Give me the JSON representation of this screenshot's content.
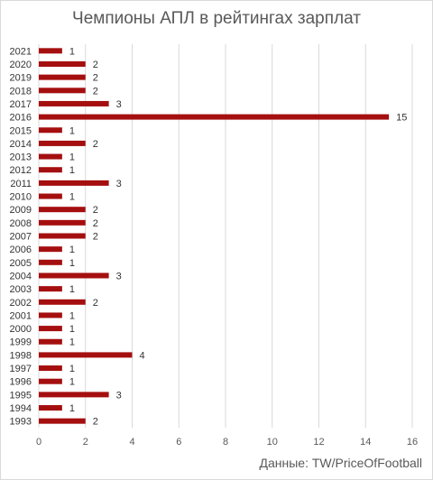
{
  "chart_data": {
    "type": "bar",
    "orientation": "horizontal",
    "title": "Чемпионы АПЛ в рейтингах зарплат",
    "source": "Данные: TW/PriceOfFootball",
    "categories": [
      "2021",
      "2020",
      "2019",
      "2018",
      "2017",
      "2016",
      "2015",
      "2014",
      "2013",
      "2012",
      "2011",
      "2010",
      "2009",
      "2008",
      "2007",
      "2006",
      "2005",
      "2004",
      "2003",
      "2002",
      "2001",
      "2000",
      "1999",
      "1998",
      "1997",
      "1996",
      "1995",
      "1994",
      "1993"
    ],
    "values": [
      1,
      2,
      2,
      2,
      3,
      15,
      1,
      2,
      1,
      1,
      3,
      1,
      2,
      2,
      2,
      1,
      1,
      3,
      1,
      2,
      1,
      1,
      1,
      4,
      1,
      1,
      3,
      1,
      2
    ],
    "xlim": [
      0,
      16
    ],
    "xticks": [
      0,
      2,
      4,
      6,
      8,
      10,
      12,
      14,
      16
    ],
    "grid": "vertical",
    "bar_color": "#a50f0f"
  }
}
